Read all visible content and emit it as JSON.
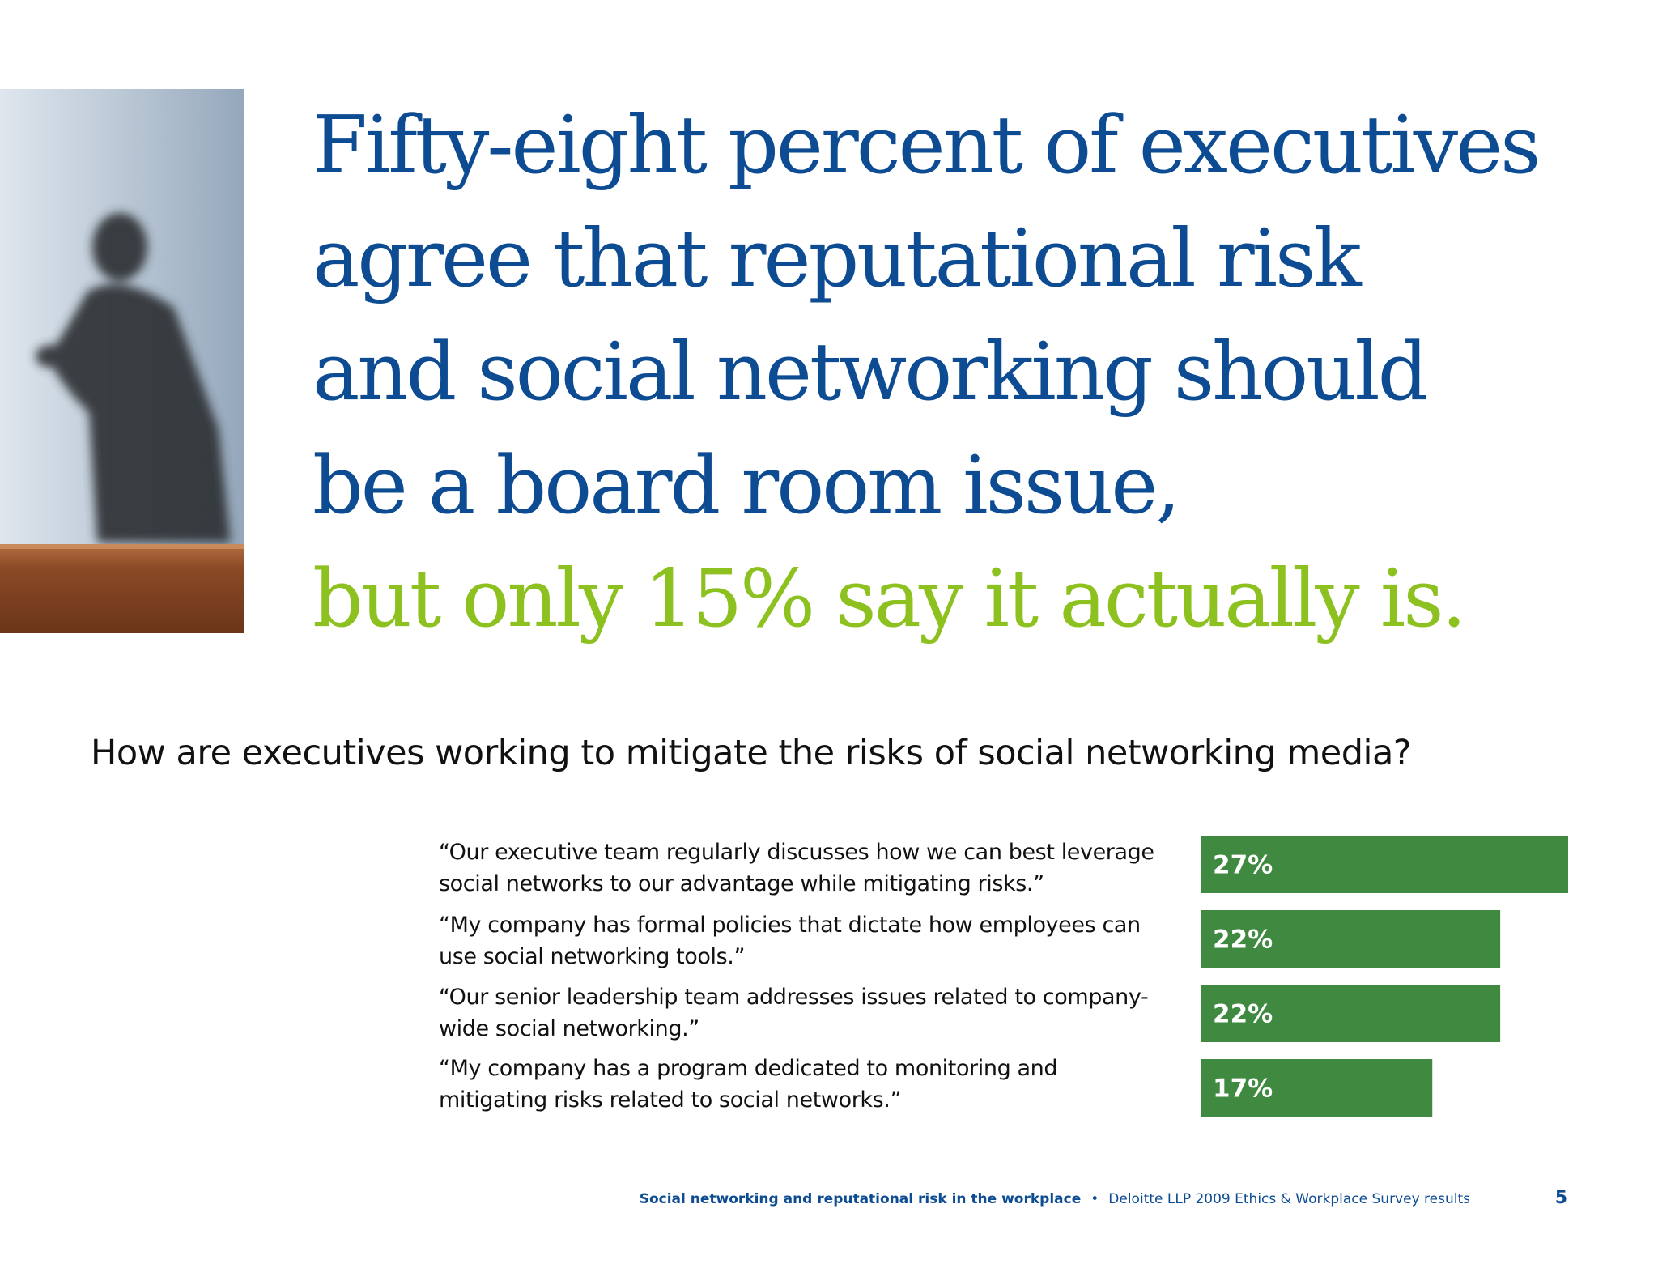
{
  "headline": {
    "lines": [
      "Fifty-eight percent of executives",
      "agree that reputational risk",
      "and social networking should",
      "be a board room issue,"
    ],
    "accent_line": "but only 15% say it actually is.",
    "color": "#0d4c92",
    "accent_color": "#8cc11f"
  },
  "question": "How are executives working to mitigate the risks of social networking media?",
  "chart_data": {
    "type": "bar",
    "orientation": "horizontal",
    "categories": [
      "“Our executive team regularly discusses how we can best leverage social networks to our advantage while mitigating risks.”",
      "“My company has formal policies that dictate how employees can use social networking tools.”",
      "“Our senior leadership team addresses issues related to company-wide social networking.”",
      "“My company has a program dedicated to monitoring and mitigating risks related to social networks.”"
    ],
    "values": [
      27,
      22,
      22,
      17
    ],
    "labels": [
      "27%",
      "22%",
      "22%",
      "17%"
    ],
    "bar_color": "#3f8a40",
    "label_color": "#ffffff"
  },
  "footer": {
    "title": "Social networking and reputational risk in the workplace",
    "separator": "•",
    "source": "Deloitte LLP 2009 Ethics & Workplace Survey results",
    "page_number": "5"
  }
}
